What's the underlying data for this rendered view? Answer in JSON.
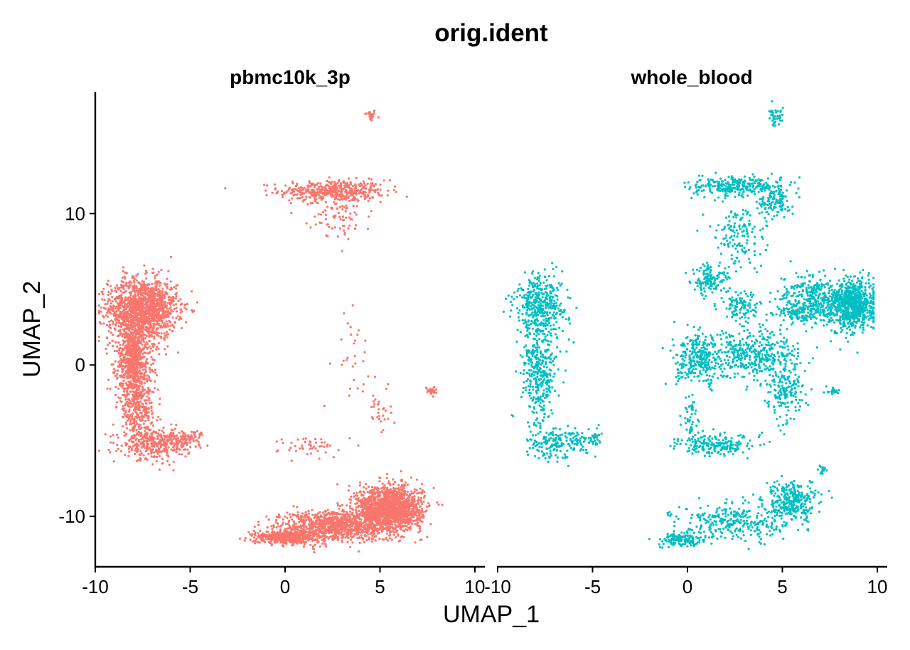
{
  "chart_data": {
    "type": "scatter",
    "title": "orig.ident",
    "xlabel": "UMAP_1",
    "ylabel": "UMAP_2",
    "xlim": [
      -10,
      10
    ],
    "ylim": [
      -13,
      18
    ],
    "x_ticks": [
      "-10",
      "-5",
      "0",
      "5",
      "10"
    ],
    "y_ticks": [
      "10",
      "0",
      "-10"
    ],
    "grid": false,
    "legend": "none",
    "panels": [
      {
        "name": "pbmc10k_3p",
        "color": "#F8766D",
        "clusters": [
          {
            "label": "top-isolated",
            "x": 4.5,
            "y": 16.5,
            "sx": 0.15,
            "sy": 0.2,
            "n": 25
          },
          {
            "label": "upper-band",
            "x": 2.5,
            "y": 11.5,
            "sx": 1.4,
            "sy": 0.35,
            "n": 420
          },
          {
            "label": "upper-tail",
            "x": 3.0,
            "y": 10.0,
            "sx": 0.8,
            "sy": 0.9,
            "n": 100
          },
          {
            "label": "left-top",
            "x": -7.5,
            "y": 3.7,
            "sx": 0.9,
            "sy": 1.0,
            "n": 1400
          },
          {
            "label": "left-stem-1",
            "x": -8.0,
            "y": 0.5,
            "sx": 0.45,
            "sy": 1.2,
            "n": 700
          },
          {
            "label": "left-stem-2",
            "x": -7.8,
            "y": -2.8,
            "sx": 0.5,
            "sy": 1.1,
            "n": 350
          },
          {
            "label": "left-bottom",
            "x": -6.8,
            "y": -5.2,
            "sx": 0.9,
            "sy": 0.5,
            "n": 350
          },
          {
            "label": "left-hook",
            "x": -5.0,
            "y": -4.8,
            "sx": 0.35,
            "sy": 0.25,
            "n": 60
          },
          {
            "label": "mid-sparse",
            "x": 3.5,
            "y": 1.0,
            "sx": 0.6,
            "sy": 1.5,
            "n": 30
          },
          {
            "label": "right-small",
            "x": 7.7,
            "y": -1.7,
            "sx": 0.15,
            "sy": 0.12,
            "n": 30
          },
          {
            "label": "mid-diagonal",
            "x": 5.0,
            "y": -2.8,
            "sx": 0.3,
            "sy": 0.9,
            "n": 30
          },
          {
            "label": "small-band",
            "x": 1.5,
            "y": -5.4,
            "sx": 0.9,
            "sy": 0.35,
            "n": 50
          },
          {
            "label": "bottom-main",
            "x": 5.5,
            "y": -9.5,
            "sx": 0.85,
            "sy": 0.75,
            "n": 1600
          },
          {
            "label": "bottom-arc",
            "x": 2.5,
            "y": -10.6,
            "sx": 1.4,
            "sy": 0.5,
            "n": 900
          },
          {
            "label": "bottom-left",
            "x": 0.0,
            "y": -11.4,
            "sx": 0.8,
            "sy": 0.2,
            "n": 500
          }
        ]
      },
      {
        "name": "whole_blood",
        "color": "#00BFC4",
        "clusters": [
          {
            "label": "top-isolated",
            "x": 4.7,
            "y": 16.3,
            "sx": 0.2,
            "sy": 0.35,
            "n": 40
          },
          {
            "label": "upper-band",
            "x": 2.5,
            "y": 11.8,
            "sx": 1.2,
            "sy": 0.3,
            "n": 260
          },
          {
            "label": "upper-right",
            "x": 4.6,
            "y": 11.0,
            "sx": 0.4,
            "sy": 0.6,
            "n": 120
          },
          {
            "label": "diagonal",
            "x": 2.8,
            "y": 8.8,
            "sx": 0.7,
            "sy": 1.2,
            "n": 160
          },
          {
            "label": "left-top",
            "x": -7.7,
            "y": 4.0,
            "sx": 0.7,
            "sy": 1.0,
            "n": 380
          },
          {
            "label": "left-stem",
            "x": -7.8,
            "y": -0.5,
            "sx": 0.45,
            "sy": 1.8,
            "n": 360
          },
          {
            "label": "left-bottom",
            "x": -6.9,
            "y": -5.2,
            "sx": 0.8,
            "sy": 0.5,
            "n": 180
          },
          {
            "label": "left-hook",
            "x": -5.0,
            "y": -4.8,
            "sx": 0.3,
            "sy": 0.25,
            "n": 30
          },
          {
            "label": "mid-upper",
            "x": 1.2,
            "y": 5.6,
            "sx": 0.5,
            "sy": 0.5,
            "n": 130
          },
          {
            "label": "mid",
            "x": 2.8,
            "y": 3.8,
            "sx": 0.5,
            "sy": 0.5,
            "n": 110
          },
          {
            "label": "mid-left",
            "x": 0.6,
            "y": 0.3,
            "sx": 0.6,
            "sy": 0.8,
            "n": 280
          },
          {
            "label": "center",
            "x": 3.5,
            "y": 0.8,
            "sx": 1.2,
            "sy": 0.8,
            "n": 400
          },
          {
            "label": "center-lower",
            "x": 5.1,
            "y": -1.8,
            "sx": 0.5,
            "sy": 0.9,
            "n": 180
          },
          {
            "label": "right-main",
            "x": 8.7,
            "y": 4.0,
            "sx": 0.6,
            "sy": 0.8,
            "n": 800
          },
          {
            "label": "right-arm",
            "x": 6.5,
            "y": 4.5,
            "sx": 0.8,
            "sy": 0.8,
            "n": 260
          },
          {
            "label": "right-lower",
            "x": 6.2,
            "y": 3.5,
            "sx": 0.8,
            "sy": 0.3,
            "n": 140
          },
          {
            "label": "right-small",
            "x": 7.7,
            "y": -1.7,
            "sx": 0.2,
            "sy": 0.1,
            "n": 20
          },
          {
            "label": "lower-band",
            "x": 1.5,
            "y": -5.3,
            "sx": 1.0,
            "sy": 0.35,
            "n": 200
          },
          {
            "label": "lower-stem",
            "x": 0.1,
            "y": -3.5,
            "sx": 0.2,
            "sy": 0.7,
            "n": 50
          },
          {
            "label": "bottom-main",
            "x": 5.5,
            "y": -9.0,
            "sx": 0.7,
            "sy": 0.6,
            "n": 300
          },
          {
            "label": "bottom-arc",
            "x": 2.5,
            "y": -10.4,
            "sx": 1.5,
            "sy": 0.6,
            "n": 300
          },
          {
            "label": "bottom-left",
            "x": -0.3,
            "y": -11.5,
            "sx": 0.6,
            "sy": 0.25,
            "n": 140
          },
          {
            "label": "bottom-isolated",
            "x": 7.1,
            "y": -6.9,
            "sx": 0.1,
            "sy": 0.2,
            "n": 15
          }
        ]
      }
    ]
  }
}
